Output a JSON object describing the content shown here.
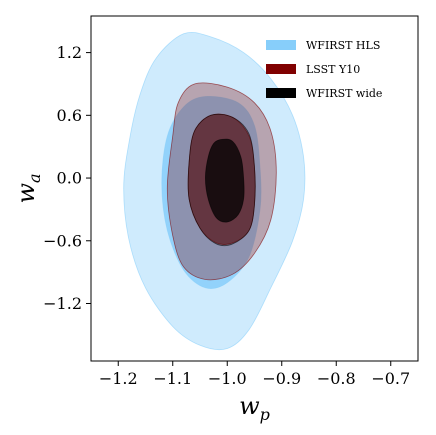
{
  "chart_data": {
    "type": "contour",
    "title": "",
    "xlabel_base": "w",
    "xlabel_sub": "p",
    "ylabel_base": "w",
    "ylabel_sub": "a",
    "xlim": [
      -1.25,
      -0.65
    ],
    "ylim": [
      -1.75,
      1.55
    ],
    "xticks": [
      -1.2,
      -1.1,
      -1.0,
      -0.9,
      -0.8,
      -0.7
    ],
    "yticks": [
      -1.2,
      -0.6,
      0.0,
      0.6,
      1.2
    ],
    "xtick_labels": [
      "−1.2",
      "−1.1",
      "−1.0",
      "−0.9",
      "−0.8",
      "−0.7"
    ],
    "ytick_labels": [
      "−1.2",
      "−0.6",
      "0.0",
      "0.6",
      "1.2"
    ],
    "grid": false,
    "legend_position": "top-right",
    "series": [
      {
        "name": "WFIRST HLS",
        "color": "#87cefa",
        "contours": [
          {
            "level": "2sigma",
            "opacity": 0.4,
            "points": [
              [
                -1.08,
                1.38
              ],
              [
                -1.03,
                1.35
              ],
              [
                -0.97,
                1.2
              ],
              [
                -0.92,
                0.95
              ],
              [
                -0.88,
                0.6
              ],
              [
                -0.86,
                0.2
              ],
              [
                -0.86,
                -0.2
              ],
              [
                -0.88,
                -0.6
              ],
              [
                -0.92,
                -1.05
              ],
              [
                -0.96,
                -1.45
              ],
              [
                -1.0,
                -1.63
              ],
              [
                -1.05,
                -1.6
              ],
              [
                -1.1,
                -1.42
              ],
              [
                -1.15,
                -1.05
              ],
              [
                -1.18,
                -0.6
              ],
              [
                -1.19,
                -0.1
              ],
              [
                -1.18,
                0.35
              ],
              [
                -1.16,
                0.8
              ],
              [
                -1.13,
                1.15
              ]
            ]
          },
          {
            "level": "1sigma",
            "opacity": 0.85,
            "points": [
              [
                -1.04,
                0.78
              ],
              [
                -0.98,
                0.72
              ],
              [
                -0.95,
                0.5
              ],
              [
                -0.94,
                0.1
              ],
              [
                -0.94,
                -0.3
              ],
              [
                -0.96,
                -0.75
              ],
              [
                -1.0,
                -1.0
              ],
              [
                -1.04,
                -1.05
              ],
              [
                -1.08,
                -0.88
              ],
              [
                -1.11,
                -0.5
              ],
              [
                -1.12,
                -0.05
              ],
              [
                -1.11,
                0.4
              ],
              [
                -1.08,
                0.68
              ]
            ]
          }
        ]
      },
      {
        "name": "LSST Y10",
        "color": "#800000",
        "contours": [
          {
            "level": "2sigma",
            "opacity": 0.3,
            "points": [
              [
                -1.06,
                0.9
              ],
              [
                -1.0,
                0.87
              ],
              [
                -0.95,
                0.72
              ],
              [
                -0.92,
                0.45
              ],
              [
                -0.91,
                0.05
              ],
              [
                -0.92,
                -0.4
              ],
              [
                -0.95,
                -0.72
              ],
              [
                -0.99,
                -0.92
              ],
              [
                -1.04,
                -0.97
              ],
              [
                -1.08,
                -0.85
              ],
              [
                -1.1,
                -0.55
              ],
              [
                -1.11,
                -0.1
              ],
              [
                -1.1,
                0.4
              ],
              [
                -1.09,
                0.72
              ]
            ]
          },
          {
            "level": "1sigma",
            "opacity": 0.5,
            "points": [
              [
                -1.03,
                0.6
              ],
              [
                -0.99,
                0.58
              ],
              [
                -0.96,
                0.4
              ],
              [
                -0.95,
                0.1
              ],
              [
                -0.95,
                -0.25
              ],
              [
                -0.96,
                -0.5
              ],
              [
                -0.99,
                -0.62
              ],
              [
                -1.02,
                -0.62
              ],
              [
                -1.05,
                -0.48
              ],
              [
                -1.07,
                -0.2
              ],
              [
                -1.07,
                0.15
              ],
              [
                -1.06,
                0.45
              ]
            ]
          }
        ]
      },
      {
        "name": "WFIRST wide",
        "color": "#000000",
        "contours": [
          {
            "level": "2sigma",
            "opacity": 0.25,
            "points": [
              [
                -1.03,
                0.6
              ],
              [
                -0.99,
                0.58
              ],
              [
                -0.96,
                0.42
              ],
              [
                -0.95,
                0.1
              ],
              [
                -0.95,
                -0.25
              ],
              [
                -0.96,
                -0.5
              ],
              [
                -0.99,
                -0.63
              ],
              [
                -1.02,
                -0.63
              ],
              [
                -1.05,
                -0.48
              ],
              [
                -1.07,
                -0.2
              ],
              [
                -1.07,
                0.15
              ],
              [
                -1.06,
                0.45
              ]
            ]
          },
          {
            "level": "1sigma",
            "opacity": 0.75,
            "points": [
              [
                -1.01,
                0.37
              ],
              [
                -0.99,
                0.35
              ],
              [
                -0.975,
                0.2
              ],
              [
                -0.97,
                0.0
              ],
              [
                -0.97,
                -0.2
              ],
              [
                -0.98,
                -0.35
              ],
              [
                -1.0,
                -0.42
              ],
              [
                -1.02,
                -0.38
              ],
              [
                -1.035,
                -0.2
              ],
              [
                -1.04,
                0.0
              ],
              [
                -1.035,
                0.2
              ],
              [
                -1.025,
                0.33
              ]
            ]
          }
        ]
      }
    ]
  }
}
